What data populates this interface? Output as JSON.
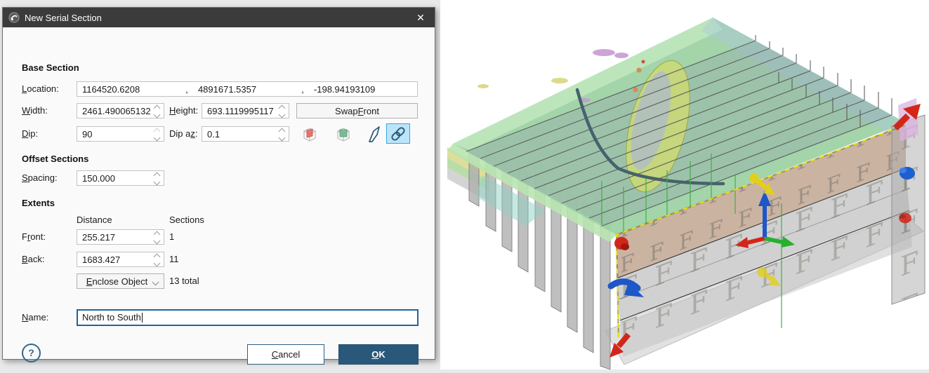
{
  "window": {
    "title": "New Serial Section",
    "close_glyph": "✕"
  },
  "dialog": {
    "base_section": {
      "heading": "Base Section",
      "location_label": "Location:",
      "location": {
        "x": "1164520.6208",
        "sep": ",  ",
        "y": "4891671.5357",
        "z": "-198.94193109"
      },
      "width_label": "Width:",
      "width_value": "2461.490065132",
      "height_label": "Height:",
      "height_value": "693.1119995117",
      "swap_front_label": "Swap Front",
      "dip_label": "Dip:",
      "dip_value": "90",
      "dip_az_label": "Dip az:",
      "dip_az_value": "0.1"
    },
    "offset_sections": {
      "heading": "Offset Sections",
      "spacing_label": "Spacing:",
      "spacing_value": "150.000"
    },
    "extents": {
      "heading": "Extents",
      "distance_header": "Distance",
      "sections_header": "Sections",
      "front_label": "Front:",
      "front_distance": "255.217",
      "front_sections": "1",
      "back_label": "Back:",
      "back_distance": "1683.427",
      "back_sections": "11",
      "enclose_label": "Enclose Object",
      "total_label": "13 total"
    },
    "name_label": "Name:",
    "name_value": "North to South",
    "help_glyph": "?",
    "buttons": {
      "cancel": "Cancel",
      "ok": "OK"
    },
    "tool_icons": [
      "red-section-cube",
      "green-section-cube",
      "draw-slicer-pencil",
      "link-sections"
    ],
    "colors": {
      "title_bar": "#3b3b3b",
      "accent": "#29587a",
      "active_tool_bg": "#bce4f8",
      "active_tool_border": "#35a7dd",
      "focus_border": "#22639a"
    }
  },
  "viewport": {
    "front_marker": "F",
    "colors": {
      "topo_green": "#9fd2a4",
      "topo_rim": "#c6ecc3",
      "plane_overlay": "#8fa3ad",
      "water_teal": "#8fd0c4",
      "pit_yellow": "#ccd976",
      "pit_inner": "#aebdc8",
      "purple_patch": "#c79ad4",
      "yellow_patch": "#d9d887",
      "base_section_front": "#bfa28d",
      "section_gray": "#ababab",
      "bottom_plane": "#dcdcdc",
      "pink_plane": "#d9b3dd",
      "section_trace": "#555555",
      "drillhole_teal": "#44636b",
      "slice_green": "#3fae3f",
      "dashed_yellow": "#f2e80c",
      "arrow_red": "#d3261a",
      "arrow_blue": "#1d57c8",
      "arrow_green": "#27b02e",
      "arrow_yellow": "#e2cf1d",
      "knob_blue": "#1d5fd0"
    }
  }
}
